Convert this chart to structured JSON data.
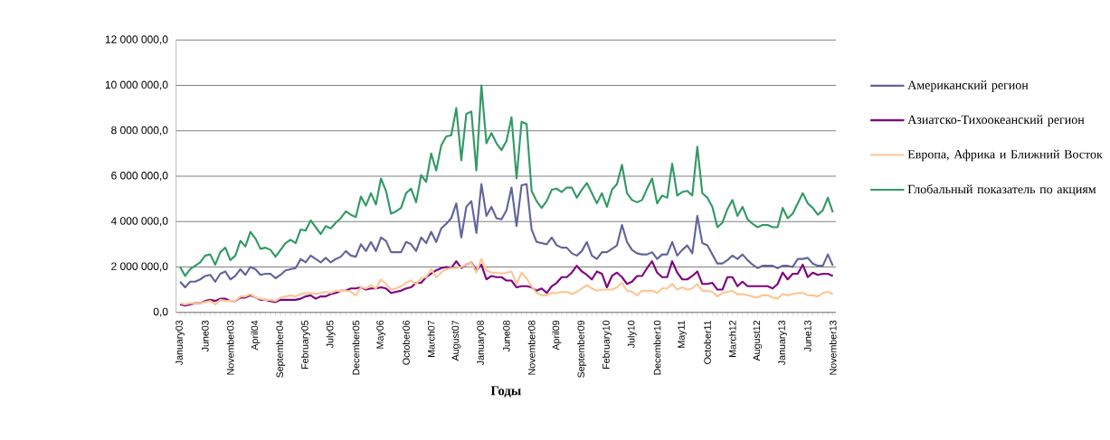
{
  "chart_data": {
    "type": "line",
    "xlabel": "Годы",
    "grid": "y",
    "legend": "right",
    "ylim": [
      0,
      12000000
    ],
    "yticks": [
      {
        "value": 0,
        "label": "0,0"
      },
      {
        "value": 2000000,
        "label": "2 000 000,0"
      },
      {
        "value": 4000000,
        "label": "4 000 000,0"
      },
      {
        "value": 6000000,
        "label": "6 000 000,0"
      },
      {
        "value": 8000000,
        "label": "8 000 000,0"
      },
      {
        "value": 10000000,
        "label": "10 000 000,0"
      },
      {
        "value": 12000000,
        "label": "12 000 000,0"
      }
    ],
    "categories": [
      "January03",
      null,
      null,
      null,
      null,
      "June03",
      null,
      null,
      null,
      null,
      "November03",
      null,
      null,
      null,
      null,
      "April04",
      null,
      null,
      null,
      null,
      "September04",
      null,
      null,
      null,
      null,
      "February05",
      null,
      null,
      null,
      null,
      "July05",
      null,
      null,
      null,
      null,
      "December05",
      null,
      null,
      null,
      null,
      "May06",
      null,
      null,
      null,
      null,
      "October06",
      null,
      null,
      null,
      null,
      "March07",
      null,
      null,
      null,
      null,
      "August07",
      null,
      null,
      null,
      null,
      "January08",
      null,
      null,
      null,
      null,
      "June08",
      null,
      null,
      null,
      null,
      "November08",
      null,
      null,
      null,
      null,
      "April09",
      null,
      null,
      null,
      null,
      "September09",
      null,
      null,
      null,
      null,
      "February10",
      null,
      null,
      null,
      null,
      "July10",
      null,
      null,
      null,
      null,
      "December10",
      null,
      null,
      null,
      null,
      "May11",
      null,
      null,
      null,
      null,
      "October11",
      null,
      null,
      null,
      null,
      "March12",
      null,
      null,
      null,
      null,
      "August12",
      null,
      null,
      null,
      null,
      "January13",
      null,
      null,
      null,
      null,
      "June13",
      null,
      null,
      null,
      null,
      "November13"
    ],
    "series": [
      {
        "name": "Американский регион",
        "color": "#62649b",
        "values": [
          1350000,
          1100000,
          1350000,
          1350000,
          1450000,
          1600000,
          1650000,
          1350000,
          1700000,
          1800000,
          1450000,
          1600000,
          1900000,
          1650000,
          2000000,
          1900000,
          1650000,
          1700000,
          1700000,
          1500000,
          1650000,
          1850000,
          1900000,
          1950000,
          2350000,
          2200000,
          2500000,
          2350000,
          2200000,
          2400000,
          2200000,
          2350000,
          2450000,
          2700000,
          2500000,
          2450000,
          3000000,
          2700000,
          3100000,
          2700000,
          3300000,
          3150000,
          2650000,
          2650000,
          2650000,
          3100000,
          3000000,
          2700000,
          3300000,
          3050000,
          3550000,
          3100000,
          3700000,
          3900000,
          4150000,
          4800000,
          3300000,
          4650000,
          4900000,
          3500000,
          5650000,
          4250000,
          4650000,
          4150000,
          4100000,
          4500000,
          5500000,
          3800000,
          5600000,
          5650000,
          3650000,
          3100000,
          3050000,
          3000000,
          3300000,
          2950000,
          2850000,
          2850000,
          2600000,
          2500000,
          2700000,
          3100000,
          2500000,
          2350000,
          2650000,
          2650000,
          2800000,
          2950000,
          3850000,
          3100000,
          2750000,
          2600000,
          2550000,
          2550000,
          2650000,
          2350000,
          2550000,
          2550000,
          3100000,
          2500000,
          2750000,
          2950000,
          2600000,
          4250000,
          3050000,
          2950000,
          2550000,
          2150000,
          2150000,
          2300000,
          2500000,
          2350000,
          2550000,
          2300000,
          2100000,
          1950000,
          2050000,
          2050000,
          2050000,
          1950000,
          2050000,
          2050000,
          2000000,
          2350000,
          2350000,
          2400000,
          2150000,
          2050000,
          2050000,
          2550000,
          2050000
        ]
      },
      {
        "name": "Азиатско-Тихоокеанский регион",
        "color": "#7f007f",
        "values": [
          350000,
          300000,
          350000,
          400000,
          400000,
          500000,
          550000,
          500000,
          600000,
          600000,
          500000,
          500000,
          650000,
          650000,
          750000,
          650000,
          550000,
          550000,
          500000,
          450000,
          550000,
          550000,
          550000,
          550000,
          600000,
          700000,
          750000,
          600000,
          700000,
          700000,
          800000,
          850000,
          950000,
          950000,
          1050000,
          1050000,
          1100000,
          1000000,
          1050000,
          1050000,
          1100000,
          1050000,
          850000,
          900000,
          950000,
          1050000,
          1100000,
          1300000,
          1300000,
          1550000,
          1700000,
          1850000,
          1950000,
          2000000,
          1950000,
          2250000,
          1950000,
          2100000,
          2200000,
          1850000,
          2100000,
          1450000,
          1600000,
          1550000,
          1550000,
          1400000,
          1400000,
          1100000,
          1150000,
          1150000,
          1100000,
          950000,
          1050000,
          850000,
          1150000,
          1300000,
          1550000,
          1550000,
          1750000,
          2050000,
          1800000,
          1650000,
          1450000,
          1800000,
          1700000,
          1100000,
          1600000,
          1750000,
          1550000,
          1250000,
          1350000,
          1600000,
          1600000,
          1950000,
          2250000,
          1750000,
          1550000,
          1550000,
          2250000,
          1750000,
          1450000,
          1450000,
          1600000,
          1800000,
          1250000,
          1250000,
          1300000,
          1000000,
          1000000,
          1550000,
          1550000,
          1150000,
          1350000,
          1150000,
          1150000,
          1150000,
          1150000,
          1150000,
          1050000,
          1250000,
          1750000,
          1450000,
          1700000,
          1700000,
          2100000,
          1550000,
          1750000,
          1650000,
          1700000,
          1700000,
          1600000
        ]
      },
      {
        "name": "Европа, Африка и Ближний Восток",
        "color": "#fcc795",
        "values": [
          400000,
          350000,
          400000,
          400000,
          400000,
          450000,
          500000,
          350000,
          550000,
          500000,
          500000,
          500000,
          700000,
          700000,
          800000,
          650000,
          600000,
          550000,
          550000,
          500000,
          650000,
          700000,
          750000,
          700000,
          800000,
          850000,
          850000,
          800000,
          850000,
          900000,
          850000,
          950000,
          950000,
          950000,
          900000,
          750000,
          1100000,
          1050000,
          1200000,
          1050000,
          1450000,
          1250000,
          1000000,
          1050000,
          1150000,
          1300000,
          1400000,
          1250000,
          1500000,
          1550000,
          1900000,
          1550000,
          1750000,
          1900000,
          1950000,
          1950000,
          2000000,
          2100000,
          2200000,
          1750000,
          2350000,
          1850000,
          1750000,
          1750000,
          1700000,
          1750000,
          1800000,
          1250000,
          1750000,
          1500000,
          1150000,
          850000,
          750000,
          750000,
          850000,
          850000,
          900000,
          900000,
          800000,
          900000,
          1050000,
          1200000,
          1050000,
          950000,
          1000000,
          1000000,
          1000000,
          1100000,
          1300000,
          950000,
          900000,
          750000,
          950000,
          950000,
          950000,
          850000,
          1050000,
          1050000,
          1250000,
          1000000,
          1100000,
          1000000,
          1050000,
          1250000,
          950000,
          950000,
          900000,
          700000,
          850000,
          900000,
          950000,
          800000,
          800000,
          750000,
          700000,
          650000,
          750000,
          750000,
          650000,
          600000,
          800000,
          750000,
          800000,
          850000,
          850000,
          750000,
          750000,
          700000,
          850000,
          900000,
          800000
        ]
      },
      {
        "name": "Глобальный показатель по акциям",
        "color": "#339966",
        "values": [
          2000000,
          1600000,
          1900000,
          2050000,
          2200000,
          2500000,
          2550000,
          2100000,
          2650000,
          2850000,
          2300000,
          2500000,
          3150000,
          2900000,
          3550000,
          3250000,
          2800000,
          2850000,
          2750000,
          2450000,
          2750000,
          3050000,
          3200000,
          3050000,
          3650000,
          3600000,
          4050000,
          3750000,
          3450000,
          3800000,
          3700000,
          3950000,
          4150000,
          4450000,
          4300000,
          4200000,
          5100000,
          4700000,
          5250000,
          4750000,
          5900000,
          5350000,
          4350000,
          4450000,
          4600000,
          5250000,
          5450000,
          4850000,
          6050000,
          5750000,
          7000000,
          6250000,
          7350000,
          7750000,
          7800000,
          9000000,
          6700000,
          8750000,
          8850000,
          6250000,
          10000000,
          7450000,
          7900000,
          7450000,
          7150000,
          7550000,
          8600000,
          5900000,
          8400000,
          8300000,
          5350000,
          4900000,
          4600000,
          4900000,
          5400000,
          5450000,
          5300000,
          5500000,
          5500000,
          5050000,
          5400000,
          5700000,
          5250000,
          4800000,
          5250000,
          4650000,
          5400000,
          5650000,
          6500000,
          5250000,
          4950000,
          4850000,
          4950000,
          5450000,
          5900000,
          4800000,
          5150000,
          5050000,
          6550000,
          5150000,
          5300000,
          5350000,
          5150000,
          7300000,
          5250000,
          5050000,
          4650000,
          3750000,
          3950000,
          4550000,
          4950000,
          4250000,
          4650000,
          4100000,
          3900000,
          3750000,
          3850000,
          3850000,
          3750000,
          3750000,
          4600000,
          4150000,
          4350000,
          4800000,
          5250000,
          4800000,
          4600000,
          4300000,
          4500000,
          5050000,
          4400000
        ]
      }
    ]
  }
}
